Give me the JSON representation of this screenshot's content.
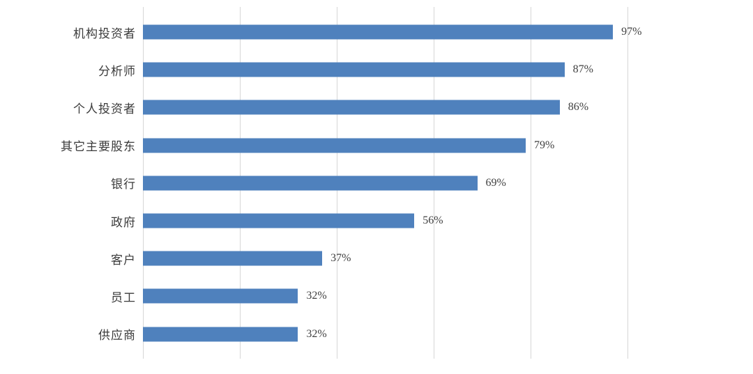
{
  "chart_data": {
    "type": "bar",
    "orientation": "horizontal",
    "title": "",
    "xlabel": "",
    "ylabel": "",
    "categories": [
      "机构投资者",
      "分析师",
      "个人投资者",
      "其它主要股东",
      "银行",
      "政府",
      "客户",
      "员工",
      "供应商"
    ],
    "values": [
      97,
      87,
      86,
      79,
      69,
      56,
      37,
      32,
      32
    ],
    "value_labels": [
      "97%",
      "87%",
      "86%",
      "79%",
      "69%",
      "56%",
      "37%",
      "32%",
      "32%"
    ],
    "xlim": [
      0,
      100
    ],
    "gridline_interval": 20,
    "grid": "vertical-only",
    "legend": "none",
    "colors": {
      "bar": "#4f81bd",
      "gridline": "#d6d6d6",
      "category_label": "#3b3b3b",
      "value_label": "#404040",
      "background": "#ffffff"
    }
  }
}
